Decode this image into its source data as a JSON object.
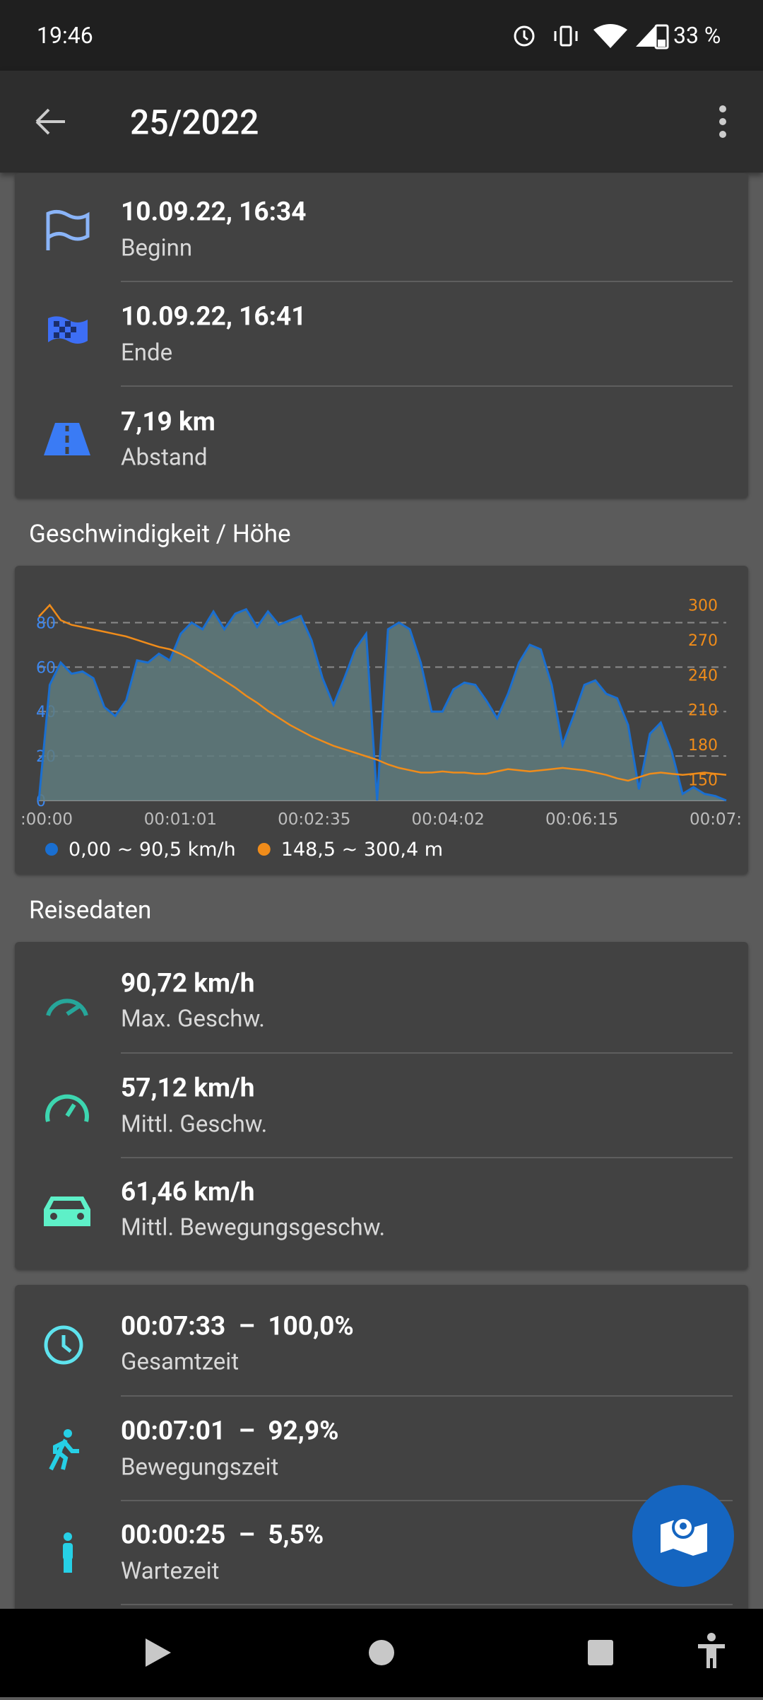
{
  "status_bar": {
    "time": "19:46",
    "battery": "33 %"
  },
  "app_bar": {
    "title": "25/2022"
  },
  "summary": [
    {
      "value": "10.09.22, 16:34",
      "label": "Beginn"
    },
    {
      "value": "10.09.22, 16:41",
      "label": "Ende"
    },
    {
      "value": "7,19 km",
      "label": "Abstand"
    }
  ],
  "chart_section": {
    "heading": "Geschwindigkeit / Höhe"
  },
  "chart_data": {
    "type": "combo",
    "grid": true,
    "x_labels": [
      ":00:00",
      "00:01:01",
      "00:02:35",
      "00:04:02",
      "00:06:15",
      "00:07:"
    ],
    "ylim": [
      0,
      90
    ],
    "yticks": [
      0,
      20,
      40,
      60,
      80
    ],
    "y2lim": [
      132,
      304
    ],
    "y2ticks": [
      150,
      180,
      210,
      240,
      270,
      300
    ],
    "series": [
      {
        "name": "0,00 ~ 90,5 km/h",
        "color": "#1a6fd1",
        "fill": "#5f7b7e",
        "mark": "area",
        "values": [
          0,
          52,
          62,
          57,
          58,
          55,
          42,
          38,
          45,
          63,
          62,
          66,
          63,
          75,
          80,
          77,
          85,
          77,
          84,
          86,
          78,
          85,
          79,
          81,
          83,
          72,
          55,
          43,
          55,
          68,
          75,
          0,
          77,
          80,
          77,
          62,
          40,
          40,
          50,
          53,
          52,
          45,
          37,
          48,
          62,
          70,
          68,
          52,
          25,
          38,
          52,
          54,
          48,
          46,
          34,
          5,
          30,
          35,
          22,
          3,
          6,
          3,
          2,
          0
        ]
      },
      {
        "name": "148,5 ~ 300,4 m",
        "color": "#f08c1a",
        "mark": "line",
        "axis": "y2",
        "values": [
          290,
          300,
          287,
          283,
          281,
          279,
          277,
          275,
          273,
          270,
          267,
          264,
          262,
          258,
          253,
          247,
          241,
          235,
          229,
          222,
          216,
          209,
          203,
          197,
          192,
          187,
          183,
          179,
          176,
          173,
          170,
          167,
          163,
          160,
          158,
          156,
          156,
          157,
          156,
          156,
          155,
          155,
          157,
          159,
          158,
          157,
          158,
          159,
          160,
          159,
          158,
          156,
          154,
          151,
          149,
          152,
          155,
          156,
          155,
          154,
          155,
          156,
          155,
          154
        ]
      }
    ]
  },
  "trip_section": {
    "heading": "Reisedaten"
  },
  "speed_stats": [
    {
      "value": "90,72 km/h",
      "label": "Max. Geschw."
    },
    {
      "value": "57,12 km/h",
      "label": "Mittl. Geschw."
    },
    {
      "value": "61,46 km/h",
      "label": "Mittl. Bewegungsgeschw."
    }
  ],
  "time_stats": [
    {
      "value": "00:07:33  –  100,0%",
      "label": "Gesamtzeit"
    },
    {
      "value": "00:07:01  –  92,9%",
      "label": "Bewegungszeit"
    },
    {
      "value": "00:00:25  –  5,5%",
      "label": "Wartezeit"
    }
  ]
}
